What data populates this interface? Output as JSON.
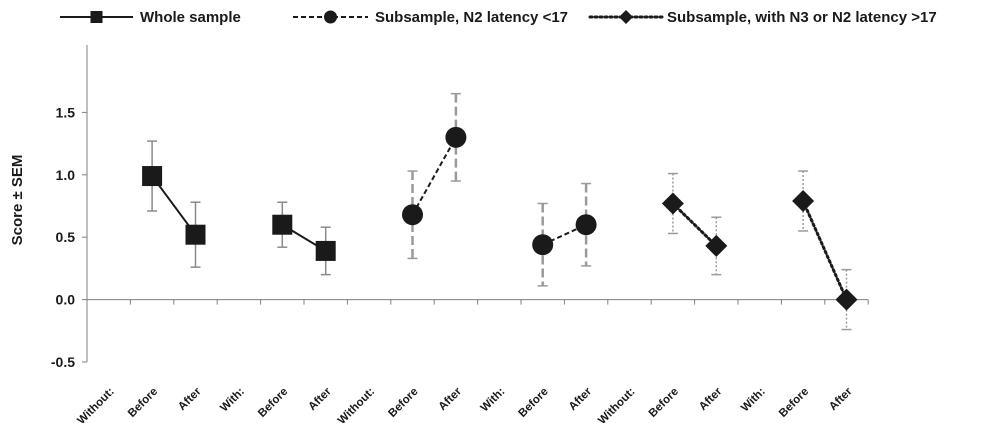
{
  "chart_data": {
    "type": "line",
    "title": "",
    "xlabel": "",
    "ylabel": "Score  ± SEM",
    "ylim": [
      -0.5,
      2.0
    ],
    "yticks": [
      -0.5,
      0.0,
      0.5,
      1.0,
      1.5
    ],
    "ytick_labels": [
      "-0.5",
      "0.0",
      "0.5",
      "1.0",
      "1.5"
    ],
    "grid": false,
    "legend_position": "top",
    "categories": [
      "Without:",
      "Before",
      "After",
      "With:",
      "Before",
      "After",
      "Without:",
      "Before",
      "After",
      "With:",
      "Before",
      "After",
      "Without:",
      "Before",
      "After",
      "With:",
      "Before",
      "After"
    ],
    "series": [
      {
        "name": "Whole sample",
        "marker": "square",
        "line_style": "solid",
        "errorbar_color": "#8a8a8a",
        "errorbar_style": "solid",
        "segments": [
          {
            "points": [
              {
                "x": 1,
                "y": 0.99,
                "err": 0.28
              },
              {
                "x": 2,
                "y": 0.52,
                "err": 0.26
              }
            ]
          },
          {
            "points": [
              {
                "x": 4,
                "y": 0.6,
                "err": 0.18
              },
              {
                "x": 5,
                "y": 0.39,
                "err": 0.19
              }
            ]
          }
        ]
      },
      {
        "name": "Subsample, N2 latency <17",
        "marker": "circle",
        "line_style": "dashed",
        "errorbar_color": "#9a9a9a",
        "errorbar_style": "dashed",
        "segments": [
          {
            "points": [
              {
                "x": 7,
                "y": 0.68,
                "err": 0.35
              },
              {
                "x": 8,
                "y": 1.3,
                "err": 0.35
              }
            ]
          },
          {
            "points": [
              {
                "x": 10,
                "y": 0.44,
                "err": 0.33
              },
              {
                "x": 11,
                "y": 0.6,
                "err": 0.33
              }
            ]
          }
        ]
      },
      {
        "name": "Subsample, with N3 or N2 latency >17",
        "marker": "diamond",
        "line_style": "dotted",
        "errorbar_color": "#9a9a9a",
        "errorbar_style": "dotted",
        "segments": [
          {
            "points": [
              {
                "x": 13,
                "y": 0.77,
                "err": 0.24
              },
              {
                "x": 14,
                "y": 0.43,
                "err": 0.23
              }
            ]
          },
          {
            "points": [
              {
                "x": 16,
                "y": 0.79,
                "err": 0.24
              },
              {
                "x": 17,
                "y": 0.0,
                "err": 0.24
              }
            ]
          }
        ]
      }
    ]
  }
}
